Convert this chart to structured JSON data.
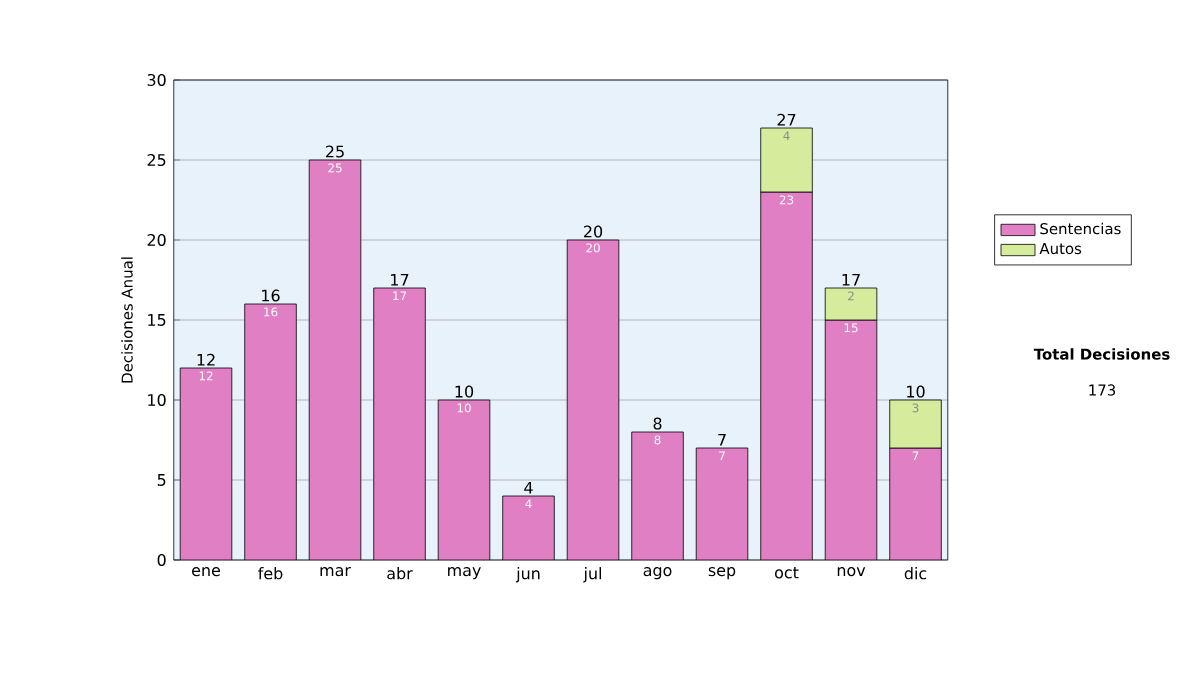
{
  "chart_data": {
    "type": "bar",
    "stacked": true,
    "ylabel": "Decisiones Anual",
    "categories": [
      "ene",
      "feb",
      "mar",
      "abr",
      "may",
      "jun",
      "jul",
      "ago",
      "sep",
      "oct",
      "nov",
      "dic"
    ],
    "series": [
      {
        "name": "Sentencias",
        "color": "#e07fc4",
        "values": [
          12,
          16,
          25,
          17,
          10,
          4,
          20,
          8,
          7,
          23,
          15,
          7
        ]
      },
      {
        "name": "Autos",
        "color": "#d4ec9c",
        "values": [
          null,
          null,
          null,
          null,
          null,
          null,
          null,
          null,
          null,
          4,
          2,
          3
        ]
      }
    ],
    "totals": [
      "12",
      "16",
      "25",
      "17",
      "10",
      "4",
      "20",
      "8",
      "7",
      "27",
      "17",
      "10"
    ],
    "ylim": [
      0,
      30
    ],
    "yticks": [
      0,
      5,
      10,
      15,
      20,
      25,
      30
    ],
    "grid": "y",
    "data_labels": true,
    "legend": "right",
    "annotations": [
      "Total Decisiones",
      "173"
    ]
  }
}
